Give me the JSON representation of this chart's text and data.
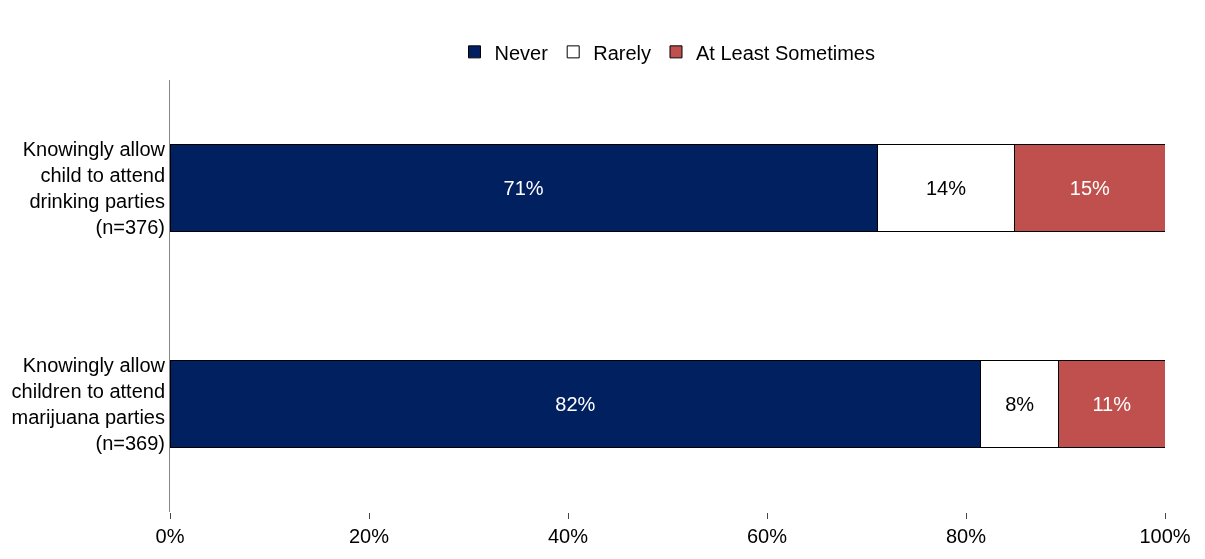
{
  "chart_data": {
    "type": "bar",
    "orientation": "horizontal",
    "stacked": true,
    "categories": [
      "Knowingly allow\nchild to attend\ndrinking parties\n(n=376)",
      "Knowingly allow\nchildren to attend\nmarijuana parties\n(n=369)"
    ],
    "series": [
      {
        "name": "Never",
        "color": "#002060",
        "values": [
          71.1,
          81.5
        ],
        "value_labels": [
          "71%",
          "82%"
        ]
      },
      {
        "name": "Rarely",
        "color": "#ffffff",
        "values": [
          13.8,
          7.8
        ],
        "value_labels": [
          "14%",
          "8%"
        ]
      },
      {
        "name": "At Least Sometimes",
        "color": "#c0504d",
        "values": [
          15.1,
          10.7
        ],
        "value_labels": [
          "15%",
          "11%"
        ]
      }
    ],
    "xlim": [
      0,
      100
    ],
    "xticks": [
      {
        "value": 0,
        "label": "0%"
      },
      {
        "value": 20,
        "label": "20%"
      },
      {
        "value": 40,
        "label": "40%"
      },
      {
        "value": 60,
        "label": "60%"
      },
      {
        "value": 80,
        "label": "80%"
      },
      {
        "value": 100,
        "label": "100%"
      }
    ],
    "grid": false,
    "legend": "top"
  }
}
